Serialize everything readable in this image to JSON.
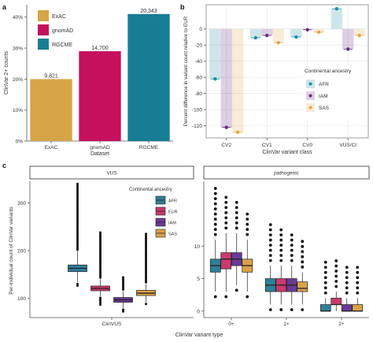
{
  "chart_data": [
    {
      "panel_label": "a",
      "type": "bar",
      "categories": [
        "ExAC",
        "gnomAD",
        "RGCME"
      ],
      "values": [
        20,
        29,
        41
      ],
      "data_labels": [
        "9,821",
        "14,700",
        "20,343"
      ],
      "colors": [
        "#d6a546",
        "#c4105d",
        "#177d94"
      ],
      "xlabel": "Dataset",
      "ylabel": "ClinVar 2+ counts",
      "ylim": [
        0,
        44
      ],
      "y_ticks": [
        0,
        10,
        20,
        30,
        40
      ],
      "y_tick_labels": [
        "0%",
        "10%",
        "20%",
        "30%",
        "40%"
      ],
      "legend": [
        "ExAC",
        "gnomAD",
        "RGCME"
      ],
      "legend_position": "top-left",
      "grid": false
    },
    {
      "panel_label": "b",
      "type": "bar",
      "categories": [
        "CV2",
        "CV1",
        "CV0",
        "VUS/CI"
      ],
      "series": [
        {
          "name": "AFR",
          "color": "#1f8ea3",
          "values": [
            -62,
            -11,
            -10,
            25
          ]
        },
        {
          "name": "IAM",
          "color": "#6a2a86",
          "values": [
            -122,
            -8,
            -1,
            -25
          ]
        },
        {
          "name": "SAS",
          "color": "#e0a64a",
          "values": [
            -128,
            -17,
            -4,
            -8
          ]
        }
      ],
      "xlabel": "ClinVar variant class",
      "ylabel": "Percent difference in variant count relative to EUR",
      "ylim": [
        -135,
        30
      ],
      "y_ticks": [
        0,
        -20,
        -40,
        -60,
        -80,
        -100,
        -120
      ],
      "legend_title": "Continental ancestry",
      "legend_position": "right",
      "grid": true
    },
    {
      "panel_label": "c",
      "type": "box",
      "ylabel": "Per-individual count of ClinVar variants",
      "xlabel": "ClinVar variant type",
      "legend_title": "Continental ancestry",
      "legend_position": "top-right",
      "series": [
        {
          "name": "AFR",
          "color": "#2f7f99"
        },
        {
          "name": "EUR",
          "color": "#c93a6e"
        },
        {
          "name": "IAM",
          "color": "#6b3a96"
        },
        {
          "name": "SAS",
          "color": "#d9a24a"
        }
      ],
      "facets": [
        {
          "title": "VUS",
          "categories": [
            "ClinVUS"
          ],
          "y_ticks": [
            100,
            200,
            300
          ],
          "ylim": [
            60,
            345
          ],
          "boxes": [
            {
              "category": "ClinVUS",
              "group": "AFR",
              "q1": 156,
              "median": 163,
              "q3": 170,
              "whisker_low": 134,
              "whisker_high": 198,
              "outlier_low": 125,
              "outlier_high": 340
            },
            {
              "category": "ClinVUS",
              "group": "EUR",
              "q1": 116,
              "median": 121,
              "q3": 126,
              "whisker_low": 105,
              "whisker_high": 140,
              "outlier_low": 87,
              "outlier_high": 240
            },
            {
              "category": "ClinVUS",
              "group": "IAM",
              "q1": 92,
              "median": 97,
              "q3": 102,
              "whisker_low": 80,
              "whisker_high": 115,
              "outlier_low": 72,
              "outlier_high": 145
            },
            {
              "category": "ClinVUS",
              "group": "SAS",
              "q1": 106,
              "median": 111,
              "q3": 117,
              "whisker_low": 92,
              "whisker_high": 130,
              "outlier_low": 85,
              "outlier_high": 238
            }
          ]
        },
        {
          "title": "pathogenic",
          "categories": [
            "0+",
            "1+",
            "2+"
          ],
          "y_ticks": [
            0,
            5,
            10
          ],
          "ylim": [
            -1,
            20
          ],
          "boxes": [
            {
              "category": "0+",
              "group": "AFR",
              "q1": 6,
              "median": 7,
              "q3": 8,
              "whisker_low": 3,
              "whisker_high": 11,
              "outlier_low": 2,
              "outlier_high": 19
            },
            {
              "category": "0+",
              "group": "EUR",
              "q1": 6.5,
              "median": 8,
              "q3": 9,
              "whisker_low": 3,
              "whisker_high": 12,
              "outlier_low": 2,
              "outlier_high": 18
            },
            {
              "category": "0+",
              "group": "IAM",
              "q1": 7,
              "median": 8,
              "q3": 9,
              "whisker_low": 4,
              "whisker_high": 12,
              "outlier_low": 3,
              "outlier_high": 17
            },
            {
              "category": "0+",
              "group": "SAS",
              "q1": 6,
              "median": 7,
              "q3": 8,
              "whisker_low": 3,
              "whisker_high": 11,
              "outlier_low": 2,
              "outlier_high": 15
            },
            {
              "category": "1+",
              "group": "AFR",
              "q1": 3,
              "median": 4,
              "q3": 5,
              "whisker_low": 1,
              "whisker_high": 7,
              "outlier_low": 0,
              "outlier_high": 14
            },
            {
              "category": "1+",
              "group": "EUR",
              "q1": 3,
              "median": 4,
              "q3": 5,
              "whisker_low": 1,
              "whisker_high": 7,
              "outlier_low": 0,
              "outlier_high": 13
            },
            {
              "category": "1+",
              "group": "IAM",
              "q1": 3,
              "median": 4,
              "q3": 5,
              "whisker_low": 1,
              "whisker_high": 7,
              "outlier_low": 0,
              "outlier_high": 12
            },
            {
              "category": "1+",
              "group": "SAS",
              "q1": 3,
              "median": 3.5,
              "q3": 4.5,
              "whisker_low": 1,
              "whisker_high": 6,
              "outlier_low": 0,
              "outlier_high": 11
            },
            {
              "category": "2+",
              "group": "AFR",
              "q1": 0,
              "median": 0,
              "q3": 1,
              "whisker_low": 0,
              "whisker_high": 2,
              "outlier_low": 0,
              "outlier_high": 8
            },
            {
              "category": "2+",
              "group": "EUR",
              "q1": 1,
              "median": 1,
              "q3": 2,
              "whisker_low": 0,
              "whisker_high": 3,
              "outlier_low": 0,
              "outlier_high": 8
            },
            {
              "category": "2+",
              "group": "IAM",
              "q1": 0,
              "median": 0,
              "q3": 1,
              "whisker_low": 0,
              "whisker_high": 2,
              "outlier_low": 0,
              "outlier_high": 7
            },
            {
              "category": "2+",
              "group": "SAS",
              "q1": 0,
              "median": 0,
              "q3": 1,
              "whisker_low": 0,
              "whisker_high": 2,
              "outlier_low": 0,
              "outlier_high": 7
            }
          ]
        }
      ]
    }
  ]
}
